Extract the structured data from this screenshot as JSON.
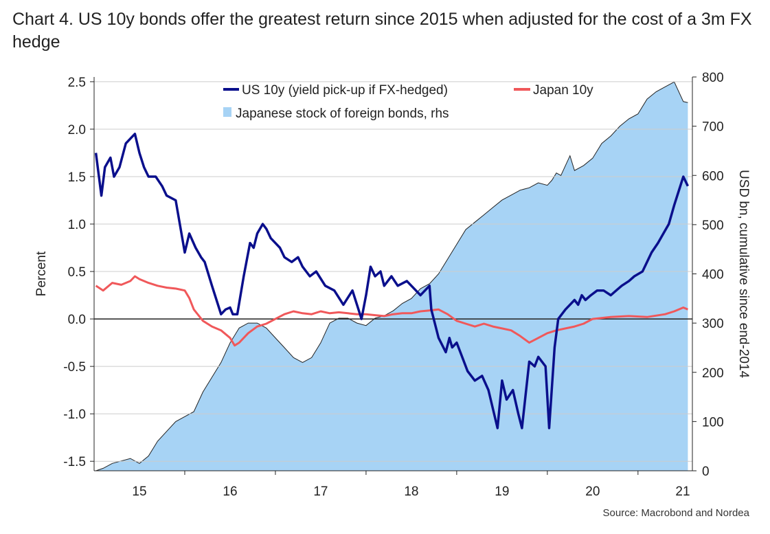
{
  "title": "Chart 4. US 10y bonds offer the greatest return since 2015 when adjusted for the cost of a 3m FX hedge",
  "source": "Source: Macrobond and Nordea",
  "colors": {
    "us_line": "#0a0f8c",
    "japan_line": "#f0585a",
    "area_fill": "#a7d3f5",
    "area_edge": "#222222",
    "zero_line": "#222222",
    "grid": "#cccccc"
  },
  "chart_data": {
    "type": "line",
    "title": "Chart 4. US 10y bonds offer the greatest return since 2015 when adjusted for the cost of a 3m FX hedge",
    "xlabel": "",
    "ylabel": "Percent",
    "y2label": "USD bn, cumulative since end-2014",
    "x_tick_labels": [
      "15",
      "16",
      "17",
      "18",
      "19",
      "20",
      "21"
    ],
    "x_tick_values": [
      2015.0,
      2016.0,
      2017.0,
      2018.0,
      2019.0,
      2020.0,
      2021.0
    ],
    "xlim": [
      2014.5,
      2021.1
    ],
    "ylim": [
      -1.6,
      2.55
    ],
    "y_ticks": [
      2.5,
      2.0,
      1.5,
      1.0,
      0.5,
      0.0,
      -0.5,
      -1.0,
      -1.5
    ],
    "y_tick_labels": [
      "2.5",
      "2.0",
      "1.5",
      "1.0",
      "0.5",
      "0.0",
      "-0.5",
      "-1.0",
      "-1.5"
    ],
    "y2lim": [
      0,
      800
    ],
    "y2_ticks": [
      800,
      700,
      600,
      500,
      400,
      300,
      200,
      100,
      0
    ],
    "y2_tick_labels": [
      "800",
      "700",
      "600",
      "500",
      "400",
      "300",
      "200",
      "100",
      "0"
    ],
    "legend": [
      {
        "label": "US 10y (yield pick-up if FX-hedged)",
        "kind": "line",
        "series": "us"
      },
      {
        "label": "Japan 10y",
        "kind": "line",
        "series": "japan"
      },
      {
        "label": "Japanese stock of foreign bonds, rhs",
        "kind": "area",
        "series": "stock"
      }
    ],
    "series": [
      {
        "name": "US 10y (yield pick-up if FX-hedged)",
        "axis": "left",
        "x": [
          2014.52,
          2014.58,
          2014.62,
          2014.68,
          2014.72,
          2014.78,
          2014.85,
          2014.9,
          2014.95,
          2015.0,
          2015.05,
          2015.1,
          2015.18,
          2015.25,
          2015.3,
          2015.4,
          2015.5,
          2015.55,
          2015.62,
          2015.68,
          2015.72,
          2015.8,
          2015.9,
          2015.95,
          2016.0,
          2016.03,
          2016.08,
          2016.15,
          2016.22,
          2016.26,
          2016.3,
          2016.36,
          2016.4,
          2016.45,
          2016.5,
          2016.55,
          2016.6,
          2016.68,
          2016.75,
          2016.8,
          2016.88,
          2016.95,
          2017.05,
          2017.15,
          2017.25,
          2017.35,
          2017.45,
          2017.5,
          2017.55,
          2017.6,
          2017.66,
          2017.7,
          2017.78,
          2017.85,
          2017.95,
          2018.0,
          2018.1,
          2018.2,
          2018.22,
          2018.3,
          2018.38,
          2018.42,
          2018.45,
          2018.5,
          2018.56,
          2018.62,
          2018.7,
          2018.78,
          2018.85,
          2018.95,
          2019.0,
          2019.05,
          2019.12,
          2019.18,
          2019.22,
          2019.3,
          2019.36,
          2019.4,
          2019.48,
          2019.52,
          2019.58,
          2019.62,
          2019.7,
          2019.75,
          2019.8,
          2019.84,
          2019.88,
          2019.92,
          2019.98,
          2020.05,
          2020.12,
          2020.2,
          2020.26,
          2020.32,
          2020.4,
          2020.46,
          2020.55,
          2020.65,
          2020.72,
          2020.78,
          2020.84,
          2020.9,
          2020.95,
          2021.0,
          2021.05
        ],
        "values": [
          1.75,
          1.3,
          1.6,
          1.7,
          1.5,
          1.6,
          1.85,
          1.9,
          1.95,
          1.75,
          1.6,
          1.5,
          1.5,
          1.4,
          1.3,
          1.25,
          0.7,
          0.9,
          0.75,
          0.65,
          0.6,
          0.35,
          0.05,
          0.1,
          0.12,
          0.05,
          0.05,
          0.45,
          0.8,
          0.75,
          0.9,
          1.0,
          0.95,
          0.85,
          0.8,
          0.75,
          0.65,
          0.6,
          0.65,
          0.55,
          0.45,
          0.5,
          0.35,
          0.3,
          0.15,
          0.3,
          0.0,
          0.25,
          0.55,
          0.45,
          0.5,
          0.35,
          0.45,
          0.35,
          0.4,
          0.35,
          0.25,
          0.35,
          0.1,
          -0.2,
          -0.35,
          -0.2,
          -0.3,
          -0.25,
          -0.4,
          -0.55,
          -0.65,
          -0.6,
          -0.75,
          -1.15,
          -0.65,
          -0.85,
          -0.75,
          -1.0,
          -1.15,
          -0.45,
          -0.5,
          -0.4,
          -0.5,
          -1.15,
          -0.3,
          0.0,
          0.1,
          0.15,
          0.2,
          0.15,
          0.25,
          0.2,
          0.25,
          0.3,
          0.3,
          0.25,
          0.3,
          0.35,
          0.4,
          0.45,
          0.5,
          0.7,
          0.8,
          0.9,
          1.0,
          1.2,
          1.35,
          1.5,
          1.4
        ]
      },
      {
        "name": "Japan 10y",
        "axis": "left",
        "x": [
          2014.52,
          2014.6,
          2014.7,
          2014.8,
          2014.9,
          2014.95,
          2015.0,
          2015.1,
          2015.2,
          2015.3,
          2015.4,
          2015.5,
          2015.55,
          2015.6,
          2015.7,
          2015.8,
          2015.9,
          2016.0,
          2016.05,
          2016.1,
          2016.2,
          2016.3,
          2016.4,
          2016.5,
          2016.6,
          2016.7,
          2016.8,
          2016.9,
          2017.0,
          2017.1,
          2017.2,
          2017.3,
          2017.4,
          2017.5,
          2017.6,
          2017.7,
          2017.8,
          2017.9,
          2018.0,
          2018.1,
          2018.2,
          2018.3,
          2018.4,
          2018.5,
          2018.6,
          2018.7,
          2018.8,
          2018.9,
          2019.0,
          2019.1,
          2019.2,
          2019.3,
          2019.4,
          2019.5,
          2019.6,
          2019.7,
          2019.8,
          2019.9,
          2020.0,
          2020.2,
          2020.4,
          2020.6,
          2020.8,
          2020.9,
          2021.0,
          2021.05
        ],
        "values": [
          0.35,
          0.3,
          0.38,
          0.36,
          0.4,
          0.45,
          0.42,
          0.38,
          0.35,
          0.33,
          0.32,
          0.3,
          0.22,
          0.1,
          -0.02,
          -0.08,
          -0.12,
          -0.2,
          -0.28,
          -0.25,
          -0.15,
          -0.08,
          -0.05,
          0.0,
          0.05,
          0.08,
          0.06,
          0.05,
          0.08,
          0.06,
          0.07,
          0.06,
          0.05,
          0.05,
          0.04,
          0.03,
          0.05,
          0.06,
          0.06,
          0.08,
          0.09,
          0.1,
          0.05,
          -0.02,
          -0.05,
          -0.08,
          -0.05,
          -0.08,
          -0.1,
          -0.12,
          -0.18,
          -0.25,
          -0.2,
          -0.15,
          -0.12,
          -0.1,
          -0.08,
          -0.05,
          0.0,
          0.02,
          0.03,
          0.02,
          0.05,
          0.08,
          0.12,
          0.1
        ]
      },
      {
        "name": "Japanese stock of foreign bonds, rhs",
        "axis": "right",
        "kind": "area",
        "x": [
          2014.52,
          2014.6,
          2014.7,
          2014.8,
          2014.9,
          2015.0,
          2015.1,
          2015.2,
          2015.3,
          2015.4,
          2015.5,
          2015.6,
          2015.7,
          2015.8,
          2015.9,
          2016.0,
          2016.1,
          2016.2,
          2016.3,
          2016.4,
          2016.5,
          2016.6,
          2016.7,
          2016.8,
          2016.9,
          2017.0,
          2017.1,
          2017.2,
          2017.3,
          2017.4,
          2017.5,
          2017.6,
          2017.7,
          2017.8,
          2017.9,
          2018.0,
          2018.1,
          2018.2,
          2018.3,
          2018.4,
          2018.5,
          2018.6,
          2018.7,
          2018.8,
          2018.9,
          2019.0,
          2019.1,
          2019.2,
          2019.3,
          2019.4,
          2019.5,
          2019.55,
          2019.6,
          2019.65,
          2019.7,
          2019.75,
          2019.8,
          2019.9,
          2020.0,
          2020.1,
          2020.2,
          2020.3,
          2020.4,
          2020.5,
          2020.6,
          2020.7,
          2020.8,
          2020.9,
          2021.0,
          2021.05
        ],
        "values": [
          0,
          5,
          15,
          20,
          25,
          15,
          30,
          60,
          80,
          100,
          110,
          120,
          160,
          190,
          220,
          260,
          290,
          300,
          300,
          290,
          270,
          250,
          230,
          220,
          230,
          260,
          300,
          310,
          310,
          300,
          295,
          310,
          315,
          325,
          340,
          350,
          370,
          380,
          400,
          430,
          460,
          490,
          505,
          520,
          535,
          550,
          560,
          570,
          575,
          585,
          580,
          590,
          605,
          600,
          620,
          640,
          610,
          620,
          635,
          665,
          680,
          700,
          715,
          725,
          755,
          770,
          780,
          790,
          750,
          748
        ]
      }
    ]
  }
}
